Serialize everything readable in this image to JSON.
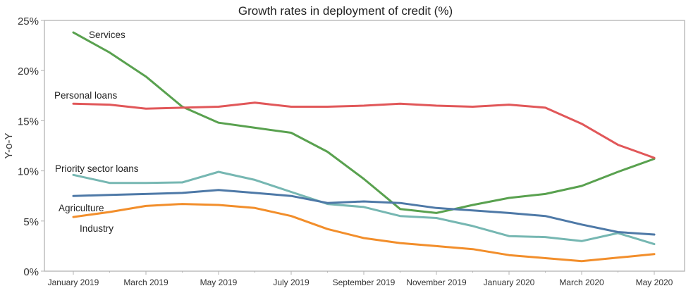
{
  "chart_data": {
    "type": "line",
    "title": "Growth rates in deployment of credit (%)",
    "xlabel": "",
    "ylabel": "Y-o-Y",
    "ylim": [
      0,
      25
    ],
    "yticks": [
      0,
      5,
      10,
      15,
      20,
      25
    ],
    "ytick_labels": [
      "0%",
      "5%",
      "10%",
      "15%",
      "20%",
      "25%"
    ],
    "grid": false,
    "legend": "inline-labels",
    "x": [
      "Jan 2019",
      "Feb 2019",
      "Mar 2019",
      "Apr 2019",
      "May 2019",
      "Jun 2019",
      "Jul 2019",
      "Aug 2019",
      "Sep 2019",
      "Oct 2019",
      "Nov 2019",
      "Dec 2019",
      "Jan 2020",
      "Feb 2020",
      "Mar 2020",
      "Apr 2020",
      "May 2020"
    ],
    "xtick_labels": [
      {
        "index": 0,
        "label": "January 2019"
      },
      {
        "index": 2,
        "label": "March 2019"
      },
      {
        "index": 4,
        "label": "May 2019"
      },
      {
        "index": 6,
        "label": "July 2019"
      },
      {
        "index": 8,
        "label": "September 2019"
      },
      {
        "index": 10,
        "label": "November 2019"
      },
      {
        "index": 12,
        "label": "January 2020"
      },
      {
        "index": 14,
        "label": "March 2020"
      },
      {
        "index": 16,
        "label": "May 2020"
      }
    ],
    "series": [
      {
        "name": "Services",
        "color": "#59a14f",
        "values": [
          23.8,
          21.8,
          19.4,
          16.4,
          14.8,
          14.3,
          13.8,
          11.9,
          9.2,
          6.2,
          5.8,
          6.6,
          7.3,
          7.7,
          8.5,
          9.9,
          11.2
        ]
      },
      {
        "name": "Personal loans",
        "color": "#e15759",
        "values": [
          16.7,
          16.6,
          16.2,
          16.3,
          16.4,
          16.8,
          16.4,
          16.4,
          16.5,
          16.7,
          16.5,
          16.4,
          16.6,
          16.3,
          14.7,
          12.6,
          11.3
        ]
      },
      {
        "name": "Priority sector loans",
        "color": "#76b7b2",
        "values": [
          9.6,
          8.8,
          8.8,
          8.85,
          9.9,
          9.1,
          7.9,
          6.7,
          6.4,
          5.5,
          5.3,
          4.5,
          3.5,
          3.4,
          3.0,
          3.8,
          2.7
        ]
      },
      {
        "name": "Agriculture",
        "color": "#4e79a7",
        "values": [
          7.5,
          7.6,
          7.7,
          7.8,
          8.1,
          7.8,
          7.5,
          6.8,
          6.95,
          6.8,
          6.3,
          6.05,
          5.8,
          5.5,
          4.65,
          3.9,
          3.65
        ]
      },
      {
        "name": "Industry",
        "color": "#f28e2b",
        "values": [
          5.4,
          5.9,
          6.5,
          6.7,
          6.6,
          6.3,
          5.5,
          4.2,
          3.3,
          2.8,
          2.5,
          2.2,
          1.6,
          1.3,
          1.0,
          1.35,
          1.7
        ]
      }
    ],
    "annotations": [
      {
        "text": "Services",
        "series": "Services"
      },
      {
        "text": "Personal loans",
        "series": "Personal loans"
      },
      {
        "text": "Priority sector loans",
        "series": "Priority sector loans"
      },
      {
        "text": "Agriculture",
        "series": "Agriculture"
      },
      {
        "text": "Industry",
        "series": "Industry"
      }
    ]
  }
}
